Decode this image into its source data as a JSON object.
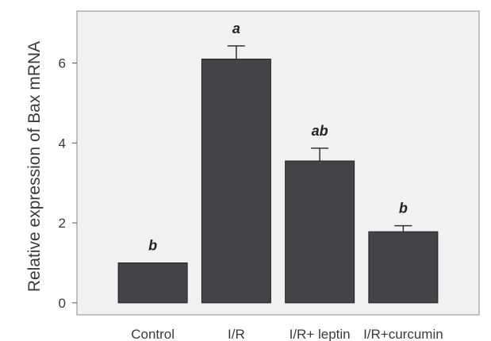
{
  "chart_data": {
    "type": "bar",
    "ylabel": "Relative expression of Bax mRNA",
    "xlabel": "",
    "categories": [
      "Control",
      "I/R",
      "I/R+ leptin",
      "I/R+curcumin"
    ],
    "values": [
      1.0,
      6.1,
      3.55,
      1.78
    ],
    "errors": [
      0.0,
      0.33,
      0.32,
      0.15
    ],
    "significance": [
      "b",
      "a",
      "ab",
      "b"
    ],
    "yticks": [
      0,
      2,
      4,
      6
    ],
    "ylim": [
      -0.3,
      7.3
    ],
    "grid": false,
    "legend": "none",
    "colors": {
      "bar": "#444446",
      "background": "#f1f1f1",
      "frame": "#8a8a8a"
    }
  }
}
